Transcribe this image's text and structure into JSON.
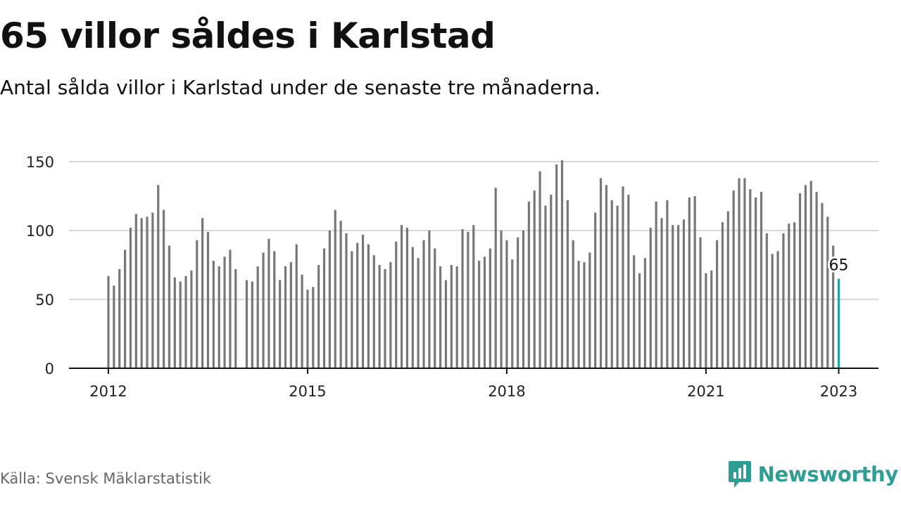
{
  "header": {
    "title": "65 villor såldes i Karlstad",
    "subtitle": "Antal sålda villor i Karlstad under de senaste tre månaderna."
  },
  "footer": {
    "source": "Källa: Svensk Mäklarstatistik",
    "brand": "Newsworthy"
  },
  "colors": {
    "bar": "#777777",
    "highlight": "#1fa39a",
    "grid": "#d9d9d9",
    "axis": "#111111",
    "brand": "#2e9e94"
  },
  "chart_data": {
    "type": "bar",
    "title": "65 villor såldes i Karlstad",
    "subtitle": "Antal sålda villor i Karlstad under de senaste tre månaderna.",
    "xlabel": "",
    "ylabel": "",
    "ylim": [
      0,
      150
    ],
    "yticks": [
      "0",
      "50",
      "100",
      "150"
    ],
    "xticks": [
      "2012",
      "2015",
      "2018",
      "2021",
      "2023"
    ],
    "grid": true,
    "x_start": "2012-01",
    "x_end": "2023-01",
    "highlight": {
      "x": "2023-01",
      "value": 65,
      "label": "65"
    },
    "values": [
      67,
      60,
      72,
      86,
      102,
      112,
      109,
      110,
      113,
      133,
      115,
      89,
      66,
      63,
      67,
      71,
      93,
      109,
      99,
      78,
      74,
      81,
      86,
      72,
      null,
      64,
      63,
      74,
      84,
      94,
      85,
      64,
      74,
      77,
      90,
      68,
      57,
      59,
      75,
      87,
      100,
      115,
      107,
      98,
      85,
      91,
      97,
      90,
      82,
      75,
      72,
      77,
      92,
      104,
      102,
      88,
      80,
      93,
      100,
      87,
      74,
      64,
      75,
      74,
      101,
      99,
      104,
      78,
      81,
      87,
      131,
      100,
      93,
      79,
      95,
      100,
      121,
      129,
      143,
      118,
      126,
      148,
      151,
      122,
      93,
      78,
      77,
      84,
      113,
      138,
      133,
      122,
      118,
      132,
      126,
      82,
      69,
      80,
      102,
      121,
      109,
      122,
      104,
      104,
      108,
      124,
      125,
      95,
      69,
      71,
      93,
      106,
      114,
      129,
      138,
      138,
      130,
      124,
      128,
      98,
      83,
      85,
      98,
      105,
      106,
      127,
      133,
      136,
      128,
      120,
      110,
      89,
      65
    ]
  }
}
